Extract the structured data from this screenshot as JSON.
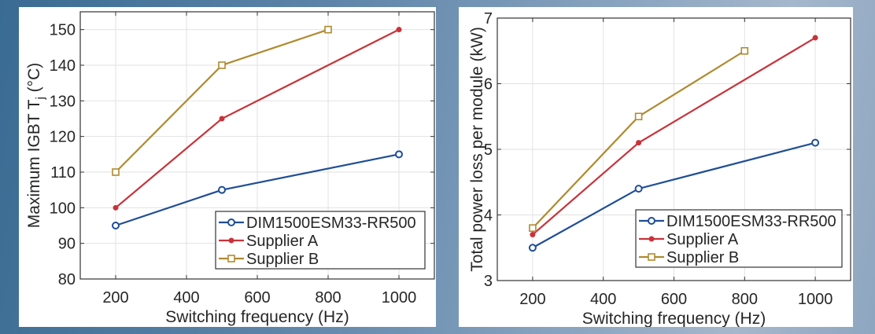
{
  "chart_data": [
    {
      "type": "line",
      "xlabel": "Switching frequency (Hz)",
      "ylabel": "Maximum  IGBT  T",
      "ylabel_sub": "j",
      "ylabel_unit": " (°C)",
      "xlim": [
        100,
        1100
      ],
      "ylim": [
        80,
        155
      ],
      "xticks": [
        200,
        400,
        600,
        800,
        1000
      ],
      "yticks": [
        80,
        90,
        100,
        110,
        120,
        130,
        140,
        150
      ],
      "grid": true,
      "legend_position": "bottom-right",
      "series": [
        {
          "name": "DIM1500ESM33-RR500",
          "color": "#1f4e96",
          "marker": "circle",
          "x": [
            200,
            500,
            1000
          ],
          "y": [
            95,
            105,
            115
          ]
        },
        {
          "name": "Supplier A",
          "color": "#c8333a",
          "marker": "dot",
          "x": [
            200,
            500,
            1000
          ],
          "y": [
            100,
            125,
            150
          ]
        },
        {
          "name": "Supplier B",
          "color": "#b08a2e",
          "marker": "square",
          "x": [
            200,
            500,
            800
          ],
          "y": [
            110,
            140,
            150
          ]
        }
      ]
    },
    {
      "type": "line",
      "xlabel": "Switching frequency (Hz)",
      "ylabel": "Total power loss per module (kW)",
      "xlim": [
        100,
        1100
      ],
      "ylim": [
        3,
        7
      ],
      "xticks": [
        200,
        400,
        600,
        800,
        1000
      ],
      "yticks": [
        3,
        4,
        5,
        6,
        7
      ],
      "grid": true,
      "legend_position": "bottom-right",
      "series": [
        {
          "name": "DIM1500ESM33-RR500",
          "color": "#1f4e96",
          "marker": "circle",
          "x": [
            200,
            500,
            1000
          ],
          "y": [
            3.5,
            4.4,
            5.1
          ]
        },
        {
          "name": "Supplier A",
          "color": "#c8333a",
          "marker": "dot",
          "x": [
            200,
            500,
            1000
          ],
          "y": [
            3.7,
            5.1,
            6.7
          ]
        },
        {
          "name": "Supplier B",
          "color": "#b08a2e",
          "marker": "square",
          "x": [
            200,
            500,
            800
          ],
          "y": [
            3.8,
            5.5,
            6.5
          ]
        }
      ]
    }
  ]
}
